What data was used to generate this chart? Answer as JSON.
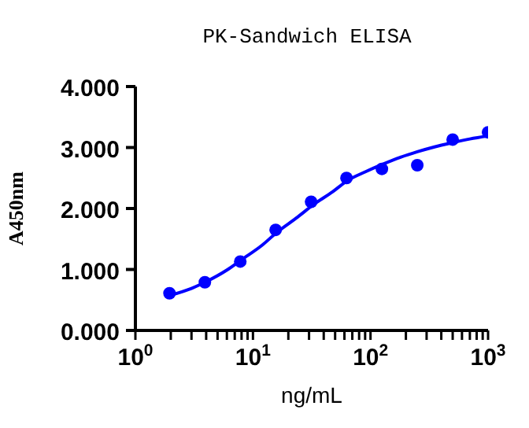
{
  "chart_data": {
    "type": "scatter",
    "title": "PK-Sandwich ELISA",
    "xlabel": "ng/mL",
    "ylabel": "A450nm",
    "log": "x",
    "xlim": [
      1,
      1000
    ],
    "xticks": [
      {
        "value": 1,
        "label": "10$^{0}$"
      },
      {
        "value": 2,
        "label": null
      },
      {
        "value": 3,
        "label": null
      },
      {
        "value": 4,
        "label": null
      },
      {
        "value": 5,
        "label": null
      },
      {
        "value": 6,
        "label": null
      },
      {
        "value": 7,
        "label": null
      },
      {
        "value": 8,
        "label": null
      },
      {
        "value": 9,
        "label": null
      },
      {
        "value": 10,
        "label": "10$^{1}$"
      },
      {
        "value": 20,
        "label": null
      },
      {
        "value": 30,
        "label": null
      },
      {
        "value": 40,
        "label": null
      },
      {
        "value": 50,
        "label": null
      },
      {
        "value": 60,
        "label": null
      },
      {
        "value": 70,
        "label": null
      },
      {
        "value": 80,
        "label": null
      },
      {
        "value": 90,
        "label": null
      },
      {
        "value": 100,
        "label": "10$^{2}$"
      },
      {
        "value": 200,
        "label": null
      },
      {
        "value": 300,
        "label": null
      },
      {
        "value": 400,
        "label": null
      },
      {
        "value": 500,
        "label": null
      },
      {
        "value": 600,
        "label": null
      },
      {
        "value": 700,
        "label": null
      },
      {
        "value": 800,
        "label": null
      },
      {
        "value": 900,
        "label": null
      },
      {
        "value": 1000,
        "label": "10$^{3}$"
      }
    ],
    "ylim": [
      0,
      4
    ],
    "yticks": [
      {
        "value": 0,
        "label": "0.000"
      },
      {
        "value": 1,
        "label": "1.000"
      },
      {
        "value": 2,
        "label": "2.000"
      },
      {
        "value": 3,
        "label": "3.000"
      },
      {
        "value": 4,
        "label": "4.000"
      }
    ],
    "series": [
      {
        "marker": "circle",
        "color": "#0000ff",
        "x": [
          1.95,
          3.9,
          7.8,
          15.6,
          31.25,
          62.5,
          125,
          250,
          500,
          1000
        ],
        "values": [
          0.61,
          0.79,
          1.13,
          1.65,
          2.11,
          2.5,
          2.65,
          2.71,
          3.13,
          3.25
        ]
      },
      {
        "type": "line",
        "marker": "none",
        "color": "#0000ff",
        "x": [
          2,
          3,
          4,
          6,
          8,
          12,
          16,
          24,
          32,
          48,
          64,
          90,
          125,
          180,
          250,
          350,
          500,
          700,
          1000
        ],
        "values": [
          0.58,
          0.69,
          0.8,
          0.99,
          1.16,
          1.4,
          1.61,
          1.86,
          2.05,
          2.28,
          2.46,
          2.6,
          2.72,
          2.84,
          2.93,
          3.01,
          3.08,
          3.14,
          3.19
        ]
      }
    ]
  }
}
